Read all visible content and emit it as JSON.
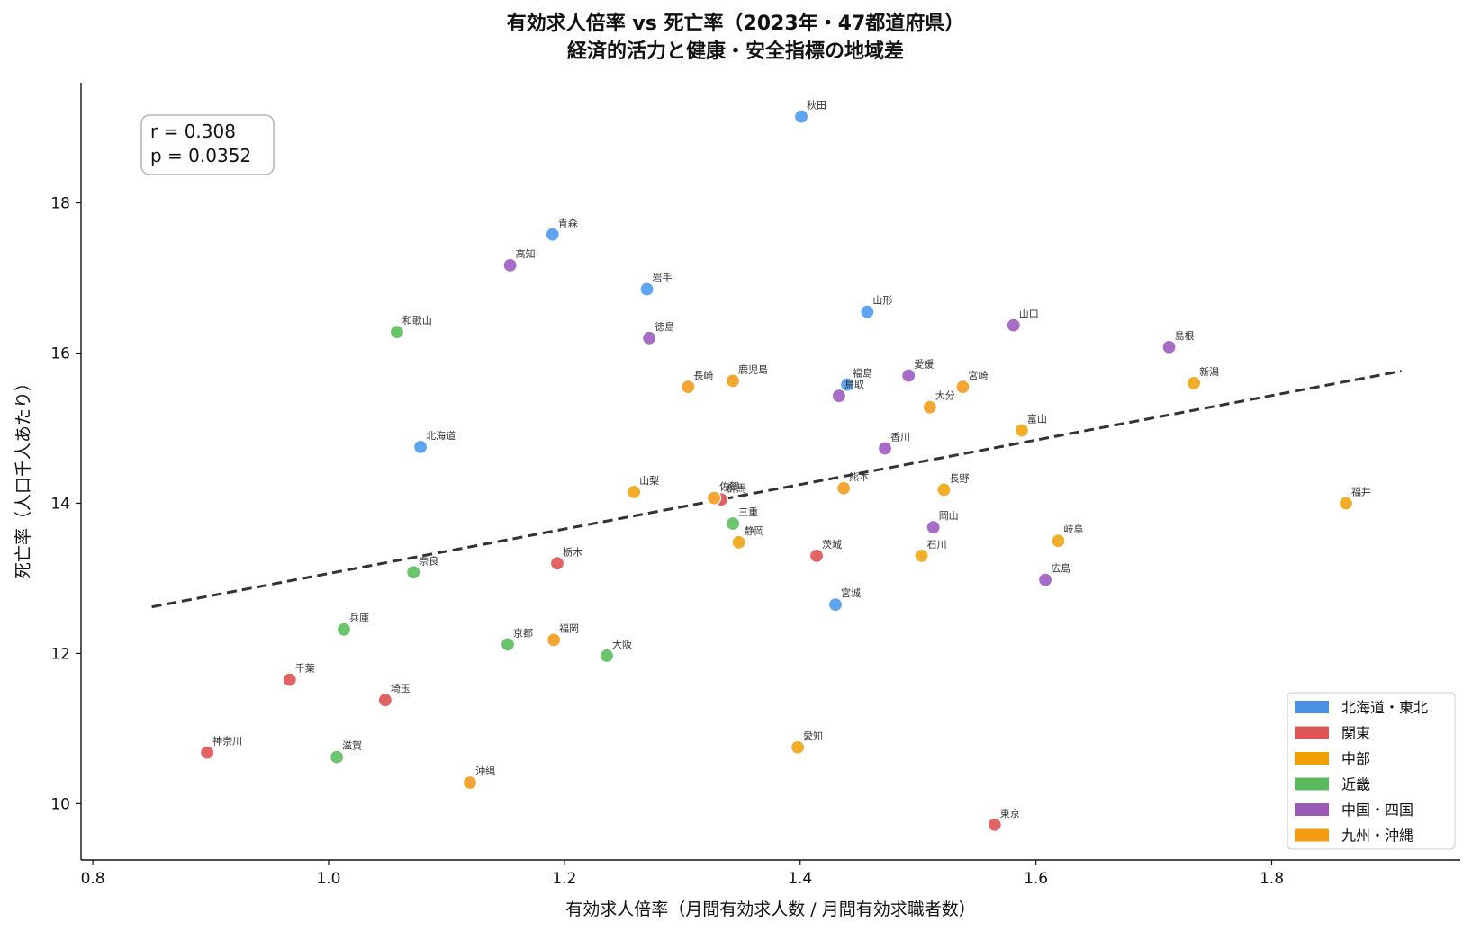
{
  "chart_data": {
    "type": "scatter",
    "title": [
      "有効求人倍率 vs 死亡率（2023年・47都道府県）",
      "経済的活力と健康・安全指標の地域差"
    ],
    "xlabel": "有効求人倍率（月間有効求人数 / 月間有効求職者数）",
    "ylabel": "死亡率（人口千人あたり）",
    "xlim": [
      0.79,
      1.96
    ],
    "ylim": [
      9.25,
      19.6
    ],
    "xticks": [
      0.8,
      1.0,
      1.2,
      1.4,
      1.6,
      1.8
    ],
    "xtick_labels": [
      "0.8",
      "1.0",
      "1.2",
      "1.4",
      "1.6",
      "1.8"
    ],
    "yticks": [
      10,
      12,
      14,
      16,
      18
    ],
    "ytick_labels": [
      "10",
      "12",
      "14",
      "16",
      "18"
    ],
    "grid": false,
    "stats": {
      "r": "r = 0.308",
      "p": "p = 0.0352"
    },
    "trendline": {
      "style": "dashed",
      "color": "#333333",
      "x": [
        0.85,
        1.91
      ],
      "y": [
        12.62,
        15.76
      ]
    },
    "legend": {
      "placement": "bottom-right",
      "entries": [
        {
          "key": "tohoku",
          "label": "北海道・東北",
          "color": "#4a90e2"
        },
        {
          "key": "kanto",
          "label": "関東",
          "color": "#dd5555"
        },
        {
          "key": "chubu",
          "label": "中部",
          "color": "#eea000"
        },
        {
          "key": "kinki",
          "label": "近畿",
          "color": "#5cb85c"
        },
        {
          "key": "chugoku",
          "label": "中国・四国",
          "color": "#9b59b6"
        },
        {
          "key": "kyushu",
          "label": "九州・沖縄",
          "color": "#f39c12"
        }
      ]
    },
    "marker_colors": {
      "tohoku": "#5fa4ee",
      "kanto": "#e06464",
      "chubu": "#f0ae2a",
      "kinki": "#6cc46c",
      "chugoku": "#a76cc6",
      "kyushu": "#f3a632"
    },
    "points": [
      {
        "name": "北海道",
        "region": "tohoku",
        "x": 1.078,
        "y": 14.75
      },
      {
        "name": "青森",
        "region": "tohoku",
        "x": 1.19,
        "y": 17.58
      },
      {
        "name": "岩手",
        "region": "tohoku",
        "x": 1.27,
        "y": 16.85
      },
      {
        "name": "宮城",
        "region": "tohoku",
        "x": 1.43,
        "y": 12.65
      },
      {
        "name": "秋田",
        "region": "tohoku",
        "x": 1.401,
        "y": 19.15
      },
      {
        "name": "山形",
        "region": "tohoku",
        "x": 1.457,
        "y": 16.55
      },
      {
        "name": "福島",
        "region": "tohoku",
        "x": 1.44,
        "y": 15.58
      },
      {
        "name": "茨城",
        "region": "kanto",
        "x": 1.414,
        "y": 13.3
      },
      {
        "name": "栃木",
        "region": "kanto",
        "x": 1.194,
        "y": 13.2
      },
      {
        "name": "群馬",
        "region": "kanto",
        "x": 1.333,
        "y": 14.05
      },
      {
        "name": "埼玉",
        "region": "kanto",
        "x": 1.048,
        "y": 11.38
      },
      {
        "name": "千葉",
        "region": "kanto",
        "x": 0.967,
        "y": 11.65
      },
      {
        "name": "東京",
        "region": "kanto",
        "x": 1.565,
        "y": 9.72
      },
      {
        "name": "神奈川",
        "region": "kanto",
        "x": 0.897,
        "y": 10.68
      },
      {
        "name": "新潟",
        "region": "chubu",
        "x": 1.734,
        "y": 15.6
      },
      {
        "name": "富山",
        "region": "chubu",
        "x": 1.588,
        "y": 14.97
      },
      {
        "name": "石川",
        "region": "chubu",
        "x": 1.503,
        "y": 13.3
      },
      {
        "name": "福井",
        "region": "chubu",
        "x": 1.863,
        "y": 14.0
      },
      {
        "name": "山梨",
        "region": "chubu",
        "x": 1.259,
        "y": 14.15
      },
      {
        "name": "長野",
        "region": "chubu",
        "x": 1.522,
        "y": 14.18
      },
      {
        "name": "岐阜",
        "region": "chubu",
        "x": 1.619,
        "y": 13.5
      },
      {
        "name": "静岡",
        "region": "chubu",
        "x": 1.348,
        "y": 13.48
      },
      {
        "name": "愛知",
        "region": "chubu",
        "x": 1.398,
        "y": 10.75
      },
      {
        "name": "三重",
        "region": "kinki",
        "x": 1.343,
        "y": 13.73
      },
      {
        "name": "滋賀",
        "region": "kinki",
        "x": 1.007,
        "y": 10.62
      },
      {
        "name": "京都",
        "region": "kinki",
        "x": 1.152,
        "y": 12.12
      },
      {
        "name": "大阪",
        "region": "kinki",
        "x": 1.236,
        "y": 11.97
      },
      {
        "name": "兵庫",
        "region": "kinki",
        "x": 1.013,
        "y": 12.32
      },
      {
        "name": "奈良",
        "region": "kinki",
        "x": 1.072,
        "y": 13.08
      },
      {
        "name": "和歌山",
        "region": "kinki",
        "x": 1.058,
        "y": 16.28
      },
      {
        "name": "鳥取",
        "region": "chugoku",
        "x": 1.433,
        "y": 15.43
      },
      {
        "name": "島根",
        "region": "chugoku",
        "x": 1.713,
        "y": 16.08
      },
      {
        "name": "岡山",
        "region": "chugoku",
        "x": 1.513,
        "y": 13.68
      },
      {
        "name": "広島",
        "region": "chugoku",
        "x": 1.608,
        "y": 12.98
      },
      {
        "name": "山口",
        "region": "chugoku",
        "x": 1.581,
        "y": 16.37
      },
      {
        "name": "徳島",
        "region": "chugoku",
        "x": 1.272,
        "y": 16.2
      },
      {
        "name": "香川",
        "region": "chugoku",
        "x": 1.472,
        "y": 14.73
      },
      {
        "name": "愛媛",
        "region": "chugoku",
        "x": 1.492,
        "y": 15.7
      },
      {
        "name": "高知",
        "region": "chugoku",
        "x": 1.154,
        "y": 17.17
      },
      {
        "name": "福岡",
        "region": "kyushu",
        "x": 1.191,
        "y": 12.18
      },
      {
        "name": "佐賀",
        "region": "kyushu",
        "x": 1.327,
        "y": 14.07
      },
      {
        "name": "長崎",
        "region": "kyushu",
        "x": 1.305,
        "y": 15.55
      },
      {
        "name": "熊本",
        "region": "kyushu",
        "x": 1.437,
        "y": 14.2
      },
      {
        "name": "大分",
        "region": "kyushu",
        "x": 1.51,
        "y": 15.28
      },
      {
        "name": "宮崎",
        "region": "kyushu",
        "x": 1.538,
        "y": 15.55
      },
      {
        "name": "鹿児島",
        "region": "kyushu",
        "x": 1.343,
        "y": 15.63
      },
      {
        "name": "沖縄",
        "region": "kyushu",
        "x": 1.12,
        "y": 10.28
      }
    ]
  }
}
